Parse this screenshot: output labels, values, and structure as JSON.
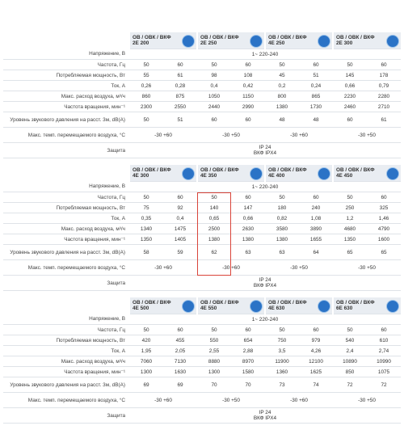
{
  "tables": [
    {
      "models": [
        {
          "series": "ОВ / ОВК / ВКФ",
          "name": "2Е 200"
        },
        {
          "series": "ОВ / ОВК / ВКФ",
          "name": "2Е 250"
        },
        {
          "series": "ОВ / ОВК / ВКФ",
          "name": "4Е 250"
        },
        {
          "series": "ОВ / ОВК / ВКФ",
          "name": "2Е 300"
        }
      ],
      "rows": [
        {
          "label": "Напряжение, В",
          "cells": [
            "1~ 220-240"
          ]
        },
        {
          "label": "Частота, Гц",
          "cells": [
            "50",
            "60",
            "50",
            "60",
            "50",
            "60",
            "50",
            "60"
          ]
        },
        {
          "label": "Потребляемая мощность, Вт",
          "cells": [
            "55",
            "61",
            "98",
            "108",
            "45",
            "51",
            "145",
            "178"
          ]
        },
        {
          "label": "Ток, А",
          "cells": [
            "0,26",
            "0,28",
            "0,4",
            "0,42",
            "0,2",
            "0,24",
            "0,66",
            "0,79"
          ]
        },
        {
          "label": "Макс. расход воздуха, м³/ч",
          "cells": [
            "860",
            "875",
            "1050",
            "1150",
            "800",
            "865",
            "2230",
            "2280"
          ]
        },
        {
          "label": "Частота вращения, мин⁻¹",
          "cells": [
            "2300",
            "2550",
            "2440",
            "2990",
            "1380",
            "1730",
            "2460",
            "2710"
          ]
        },
        {
          "label": "Уровень звукового давления на расст. 3м, dB(A)",
          "cells": [
            "50",
            "51",
            "60",
            "60",
            "48",
            "48",
            "60",
            "61"
          ]
        },
        {
          "label": "Макс. темп. перемещаемого воздуха, °С",
          "cells": [
            "-30 +60",
            "-30 +50",
            "-30 +60",
            "-30 +50"
          ]
        }
      ],
      "protection": {
        "label": "Защита",
        "lines": [
          "IP 24",
          "ВКФ IPX4"
        ]
      }
    },
    {
      "models": [
        {
          "series": "ОВ / ОВК / ВКФ",
          "name": "4Е 300"
        },
        {
          "series": "ОВ / ОВК / ВКФ",
          "name": "4Е 350"
        },
        {
          "series": "ОВ / ОВК / ВКФ",
          "name": "4Е 400"
        },
        {
          "series": "ОВ / ОВК / ВКФ",
          "name": "4Е 450"
        }
      ],
      "rows": [
        {
          "label": "Напряжение, В",
          "cells": [
            "1~ 220-240"
          ]
        },
        {
          "label": "Частота, Гц",
          "cells": [
            "50",
            "60",
            "50",
            "60",
            "50",
            "60",
            "50",
            "60"
          ]
        },
        {
          "label": "Потребляемая мощность, Вт",
          "cells": [
            "75",
            "92",
            "140",
            "147",
            "180",
            "240",
            "250",
            "325"
          ]
        },
        {
          "label": "Ток, А",
          "cells": [
            "0,35",
            "0,4",
            "0,65",
            "0,66",
            "0,82",
            "1,08",
            "1,2",
            "1,46"
          ]
        },
        {
          "label": "Макс. расход воздуха, м³/ч",
          "cells": [
            "1340",
            "1475",
            "2500",
            "2630",
            "3580",
            "3890",
            "4680",
            "4790"
          ]
        },
        {
          "label": "Частота вращения, мин⁻¹",
          "cells": [
            "1350",
            "1405",
            "1380",
            "1380",
            "1380",
            "1655",
            "1350",
            "1600"
          ]
        },
        {
          "label": "Уровень звукового давления на расст. 3м, dB(A)",
          "cells": [
            "58",
            "59",
            "62",
            "63",
            "63",
            "64",
            "65",
            "65"
          ]
        },
        {
          "label": "Макс. темп. перемещаемого воздуха, °С",
          "cells": [
            "-30 +60",
            "-30 +60",
            "-30 +50",
            "-30 +50"
          ]
        }
      ],
      "protection": {
        "label": "Защита",
        "lines": [
          "IP 24",
          "ВКФ IPX4"
        ]
      }
    },
    {
      "models": [
        {
          "series": "ОВ / ОВК / ВКФ",
          "name": "4Е 500"
        },
        {
          "series": "ОВ / ОВК / ВКФ",
          "name": "4Е 550"
        },
        {
          "series": "ОВ / ОВК / ВКФ",
          "name": "4Е 630"
        },
        {
          "series": "ОВ / ОВК / ВКФ",
          "name": "6Е 630"
        }
      ],
      "rows": [
        {
          "label": "Напряжение, В",
          "cells": [
            "1~ 220-240"
          ]
        },
        {
          "label": "Частота, Гц",
          "cells": [
            "50",
            "60",
            "50",
            "60",
            "50",
            "60",
            "50",
            "60"
          ]
        },
        {
          "label": "Потребляемая мощность, Вт",
          "cells": [
            "420",
            "455",
            "550",
            "654",
            "750",
            "979",
            "540",
            "610"
          ]
        },
        {
          "label": "Ток, А",
          "cells": [
            "1,95",
            "2,05",
            "2,55",
            "2,88",
            "3,5",
            "4,26",
            "2,4",
            "2,74"
          ]
        },
        {
          "label": "Макс. расход воздуха, м³/ч",
          "cells": [
            "7060",
            "7130",
            "8880",
            "8970",
            "11900",
            "12100",
            "10890",
            "10990"
          ]
        },
        {
          "label": "Частота вращения, мин⁻¹",
          "cells": [
            "1300",
            "1630",
            "1300",
            "1580",
            "1360",
            "1625",
            "850",
            "1075"
          ]
        },
        {
          "label": "Уровень звукового давления на расст. 3м, dB(A)",
          "cells": [
            "69",
            "69",
            "70",
            "70",
            "73",
            "74",
            "72",
            "72"
          ]
        },
        {
          "label": "Макс. темп. перемещаемого воздуха, °С",
          "cells": [
            "-30 +60",
            "-30 +50",
            "-30 +60",
            "-30 +50"
          ]
        }
      ],
      "protection": {
        "label": "Защита",
        "lines": [
          "IP 24",
          "ВКФ IPX4"
        ]
      }
    }
  ]
}
